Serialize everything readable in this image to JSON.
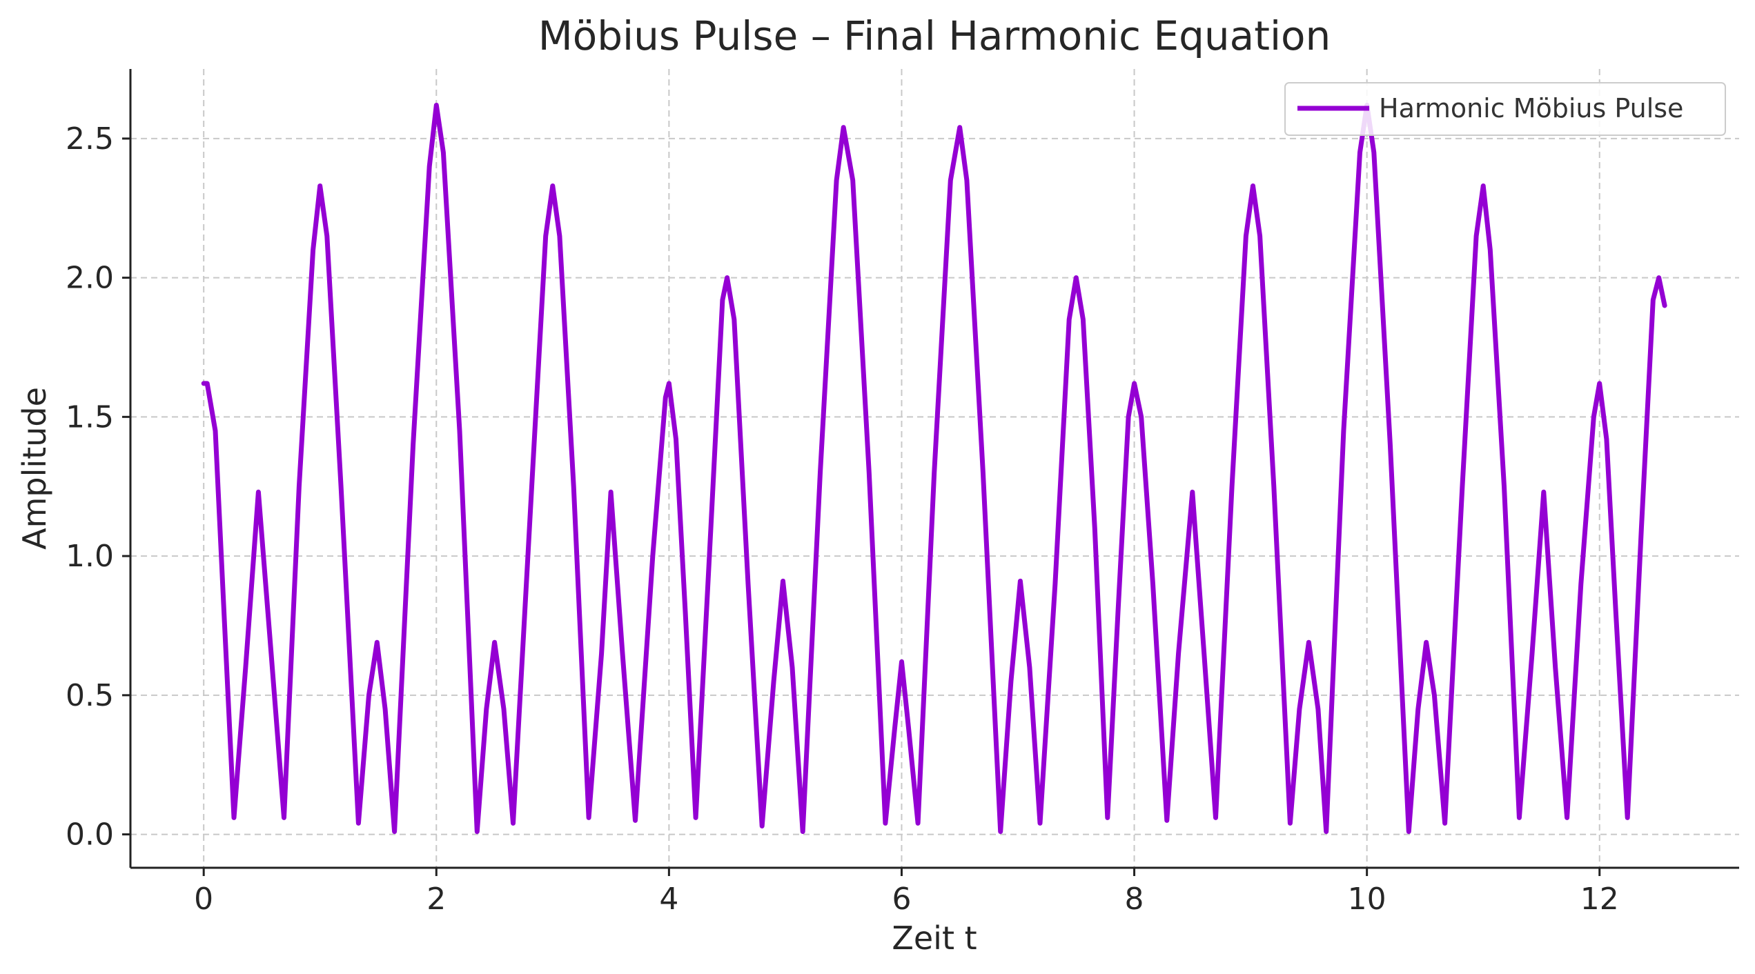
{
  "chart_data": {
    "type": "line",
    "title": "Möbius Pulse – Final Harmonic Equation",
    "xlabel": "Zeit t",
    "ylabel": "Amplitude",
    "xlim": [
      -0.63,
      13.2
    ],
    "ylim": [
      -0.12,
      2.75
    ],
    "xticks": [
      0,
      2,
      4,
      6,
      8,
      10,
      12
    ],
    "xtick_labels": [
      "0",
      "2",
      "4",
      "6",
      "8",
      "10",
      "12"
    ],
    "yticks": [
      0.0,
      0.5,
      1.0,
      1.5,
      2.0,
      2.5
    ],
    "ytick_labels": [
      "0.0",
      "0.5",
      "1.0",
      "1.5",
      "2.0",
      "2.5"
    ],
    "grid": true,
    "legend_position": "top-right",
    "series": [
      {
        "name": "Harmonic Möbius Pulse",
        "color": "#9400d3",
        "points": [
          [
            0.0,
            1.62
          ],
          [
            0.03,
            1.62
          ],
          [
            0.1,
            1.45
          ],
          [
            0.18,
            0.75
          ],
          [
            0.26,
            0.06
          ],
          [
            0.36,
            0.6
          ],
          [
            0.47,
            1.23
          ],
          [
            0.58,
            0.65
          ],
          [
            0.69,
            0.06
          ],
          [
            0.82,
            1.25
          ],
          [
            0.94,
            2.1
          ],
          [
            1.0,
            2.33
          ],
          [
            1.06,
            2.15
          ],
          [
            1.18,
            1.25
          ],
          [
            1.33,
            0.04
          ],
          [
            1.42,
            0.5
          ],
          [
            1.49,
            0.69
          ],
          [
            1.56,
            0.45
          ],
          [
            1.64,
            0.01
          ],
          [
            1.8,
            1.4
          ],
          [
            1.94,
            2.4
          ],
          [
            2.0,
            2.62
          ],
          [
            2.06,
            2.45
          ],
          [
            2.2,
            1.45
          ],
          [
            2.35,
            0.01
          ],
          [
            2.43,
            0.45
          ],
          [
            2.5,
            0.69
          ],
          [
            2.58,
            0.45
          ],
          [
            2.66,
            0.04
          ],
          [
            2.82,
            1.25
          ],
          [
            2.94,
            2.15
          ],
          [
            3.0,
            2.33
          ],
          [
            3.06,
            2.15
          ],
          [
            3.18,
            1.25
          ],
          [
            3.31,
            0.06
          ],
          [
            3.42,
            0.65
          ],
          [
            3.5,
            1.23
          ],
          [
            3.6,
            0.65
          ],
          [
            3.71,
            0.05
          ],
          [
            3.86,
            1.0
          ],
          [
            3.97,
            1.57
          ],
          [
            4.0,
            1.62
          ],
          [
            4.06,
            1.42
          ],
          [
            4.14,
            0.8
          ],
          [
            4.23,
            0.06
          ],
          [
            4.36,
            1.1
          ],
          [
            4.46,
            1.92
          ],
          [
            4.5,
            2.0
          ],
          [
            4.56,
            1.85
          ],
          [
            4.68,
            0.9
          ],
          [
            4.8,
            0.03
          ],
          [
            4.9,
            0.55
          ],
          [
            4.98,
            0.91
          ],
          [
            5.06,
            0.6
          ],
          [
            5.15,
            0.01
          ],
          [
            5.3,
            1.3
          ],
          [
            5.44,
            2.35
          ],
          [
            5.5,
            2.54
          ],
          [
            5.58,
            2.35
          ],
          [
            5.72,
            1.3
          ],
          [
            5.86,
            0.04
          ],
          [
            5.94,
            0.38
          ],
          [
            6.0,
            0.62
          ],
          [
            6.06,
            0.38
          ],
          [
            6.14,
            0.04
          ],
          [
            6.28,
            1.3
          ],
          [
            6.42,
            2.35
          ],
          [
            6.5,
            2.54
          ],
          [
            6.56,
            2.35
          ],
          [
            6.7,
            1.3
          ],
          [
            6.85,
            0.01
          ],
          [
            6.94,
            0.55
          ],
          [
            7.02,
            0.91
          ],
          [
            7.1,
            0.6
          ],
          [
            7.19,
            0.04
          ],
          [
            7.32,
            0.9
          ],
          [
            7.44,
            1.85
          ],
          [
            7.5,
            2.0
          ],
          [
            7.56,
            1.85
          ],
          [
            7.66,
            1.1
          ],
          [
            7.77,
            0.06
          ],
          [
            7.86,
            0.8
          ],
          [
            7.95,
            1.5
          ],
          [
            8.0,
            1.62
          ],
          [
            8.06,
            1.5
          ],
          [
            8.16,
            0.9
          ],
          [
            8.28,
            0.05
          ],
          [
            8.38,
            0.65
          ],
          [
            8.5,
            1.23
          ],
          [
            8.6,
            0.65
          ],
          [
            8.7,
            0.06
          ],
          [
            8.84,
            1.25
          ],
          [
            8.96,
            2.15
          ],
          [
            9.02,
            2.33
          ],
          [
            9.08,
            2.15
          ],
          [
            9.2,
            1.25
          ],
          [
            9.34,
            0.04
          ],
          [
            9.42,
            0.45
          ],
          [
            9.5,
            0.69
          ],
          [
            9.58,
            0.45
          ],
          [
            9.65,
            0.01
          ],
          [
            9.8,
            1.45
          ],
          [
            9.94,
            2.45
          ],
          [
            10.0,
            2.62
          ],
          [
            10.06,
            2.45
          ],
          [
            10.2,
            1.4
          ],
          [
            10.36,
            0.01
          ],
          [
            10.44,
            0.45
          ],
          [
            10.51,
            0.69
          ],
          [
            10.58,
            0.5
          ],
          [
            10.67,
            0.04
          ],
          [
            10.82,
            1.25
          ],
          [
            10.94,
            2.15
          ],
          [
            11.0,
            2.33
          ],
          [
            11.06,
            2.1
          ],
          [
            11.18,
            1.25
          ],
          [
            11.31,
            0.06
          ],
          [
            11.42,
            0.65
          ],
          [
            11.52,
            1.23
          ],
          [
            11.62,
            0.6
          ],
          [
            11.72,
            0.06
          ],
          [
            11.84,
            0.9
          ],
          [
            11.95,
            1.5
          ],
          [
            12.0,
            1.62
          ],
          [
            12.06,
            1.42
          ],
          [
            12.14,
            0.8
          ],
          [
            12.24,
            0.06
          ],
          [
            12.36,
            1.1
          ],
          [
            12.46,
            1.92
          ],
          [
            12.51,
            2.0
          ],
          [
            12.56,
            1.9
          ]
        ]
      }
    ]
  }
}
